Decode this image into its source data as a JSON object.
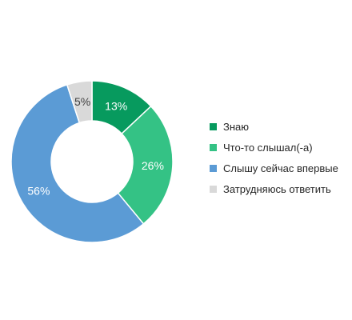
{
  "chart_data": {
    "type": "pie",
    "donut": true,
    "categories": [
      "Знаю",
      "Что-то слышал(-а)",
      "Слышу сейчас впервые",
      "Затрудняюсь ответить"
    ],
    "values": [
      13,
      26,
      56,
      5
    ],
    "labels": [
      "13%",
      "26%",
      "56%",
      "5%"
    ],
    "colors": [
      "#079a5e",
      "#34c285",
      "#5b9bd5",
      "#d9d9d9"
    ],
    "legend_position": "right"
  }
}
